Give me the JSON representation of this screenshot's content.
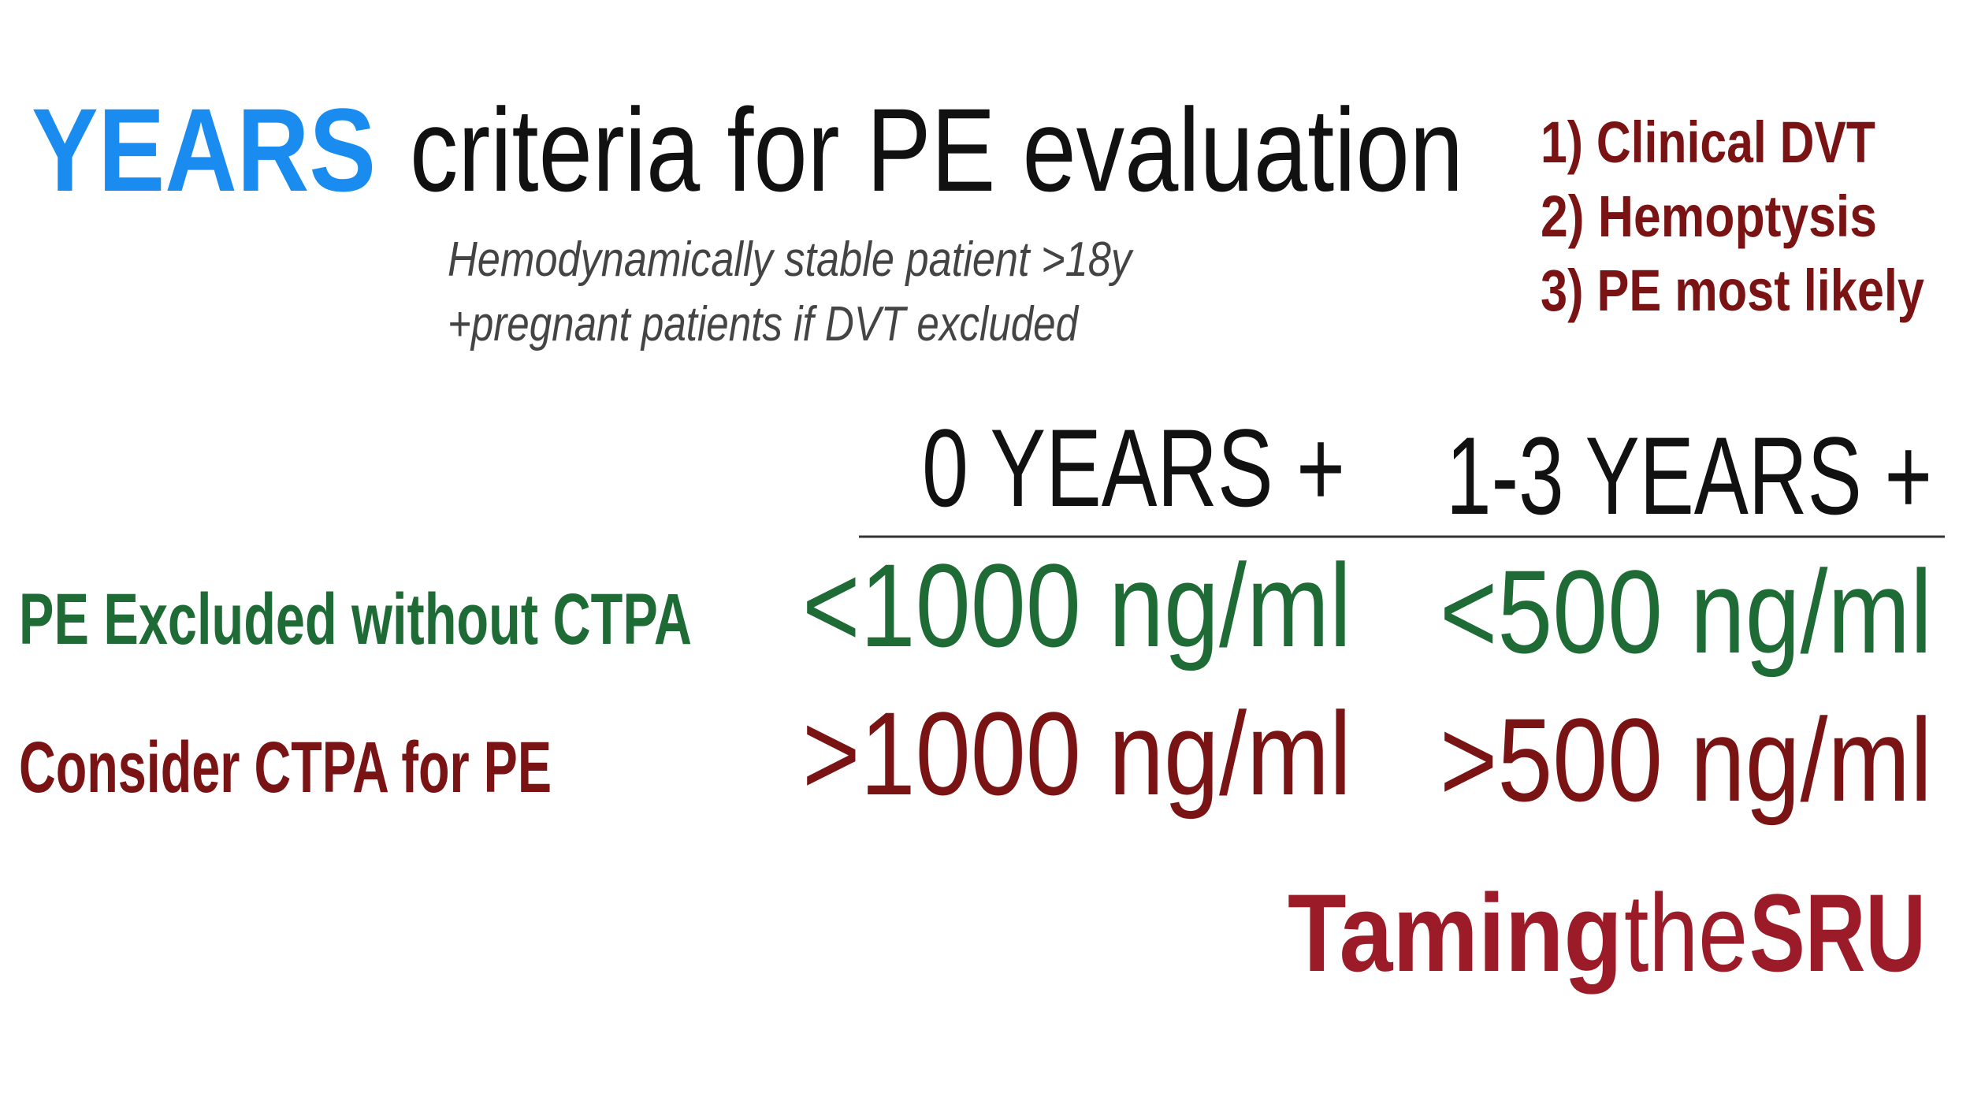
{
  "title": {
    "highlight": "YEARS",
    "text": "criteria for PE evaluation"
  },
  "subtitle": [
    "Hemodynamically stable patient >18y",
    "+pregnant patients if DVT excluded"
  ],
  "criteria": [
    "1) Clinical DVT",
    "2) Hemoptysis",
    "3) PE most likely"
  ],
  "table": {
    "columns": [
      "0 YEARS +",
      "1-3 YEARS +"
    ],
    "rows": [
      {
        "label": "PE Excluded without CTPA",
        "values": [
          "<1000 ng/ml",
          "<500 ng/ml"
        ]
      },
      {
        "label": "Consider CTPA for PE",
        "values": [
          ">1000 ng/ml",
          ">500 ng/ml"
        ]
      }
    ]
  },
  "logo": [
    "Taming",
    "the",
    "SRU"
  ]
}
